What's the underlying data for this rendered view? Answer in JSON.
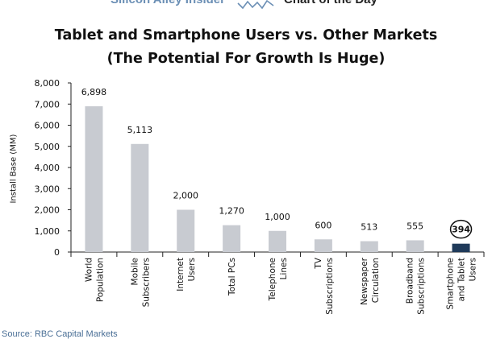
{
  "banner": {
    "brand": "Silicon Alley Insider",
    "feature": "Chart of the Day"
  },
  "source": "Source: RBC Capital Markets",
  "colors": {
    "bar": "#c8cbd1",
    "highlight_bar": "#1f3a5a",
    "axis": "#222222",
    "brand": "#6b8fb5"
  },
  "chart_data": {
    "type": "bar",
    "title": "Tablet and Smartphone Users vs. Other Markets",
    "subtitle": "(The Potential For Growth Is Huge)",
    "ylabel": "Install Base (MM)",
    "xlabel": "",
    "ylim": [
      0,
      8000
    ],
    "yticks": [
      "0",
      "1,000",
      "2,000",
      "3,000",
      "4,000",
      "5,000",
      "6,000",
      "7,000",
      "8,000"
    ],
    "grid": false,
    "categories": [
      [
        "World",
        "Population"
      ],
      [
        "Mobile",
        "Subscribers"
      ],
      [
        "Internet",
        "Users"
      ],
      [
        "Total PCs"
      ],
      [
        "Telephone",
        "Lines"
      ],
      [
        "TV",
        "Subscriptions"
      ],
      [
        "Newspaper",
        "Circulation"
      ],
      [
        "Broadband",
        "Subscriptions"
      ],
      [
        "Smartphone",
        "and Tablet",
        "Users"
      ]
    ],
    "values": [
      6898,
      5113,
      2000,
      1270,
      1000,
      600,
      513,
      555,
      394
    ],
    "data_labels": [
      "6,898",
      "5,113",
      "2,000",
      "1,270",
      "1,000",
      "600",
      "513",
      "555",
      "394"
    ],
    "highlight_index": 8
  }
}
